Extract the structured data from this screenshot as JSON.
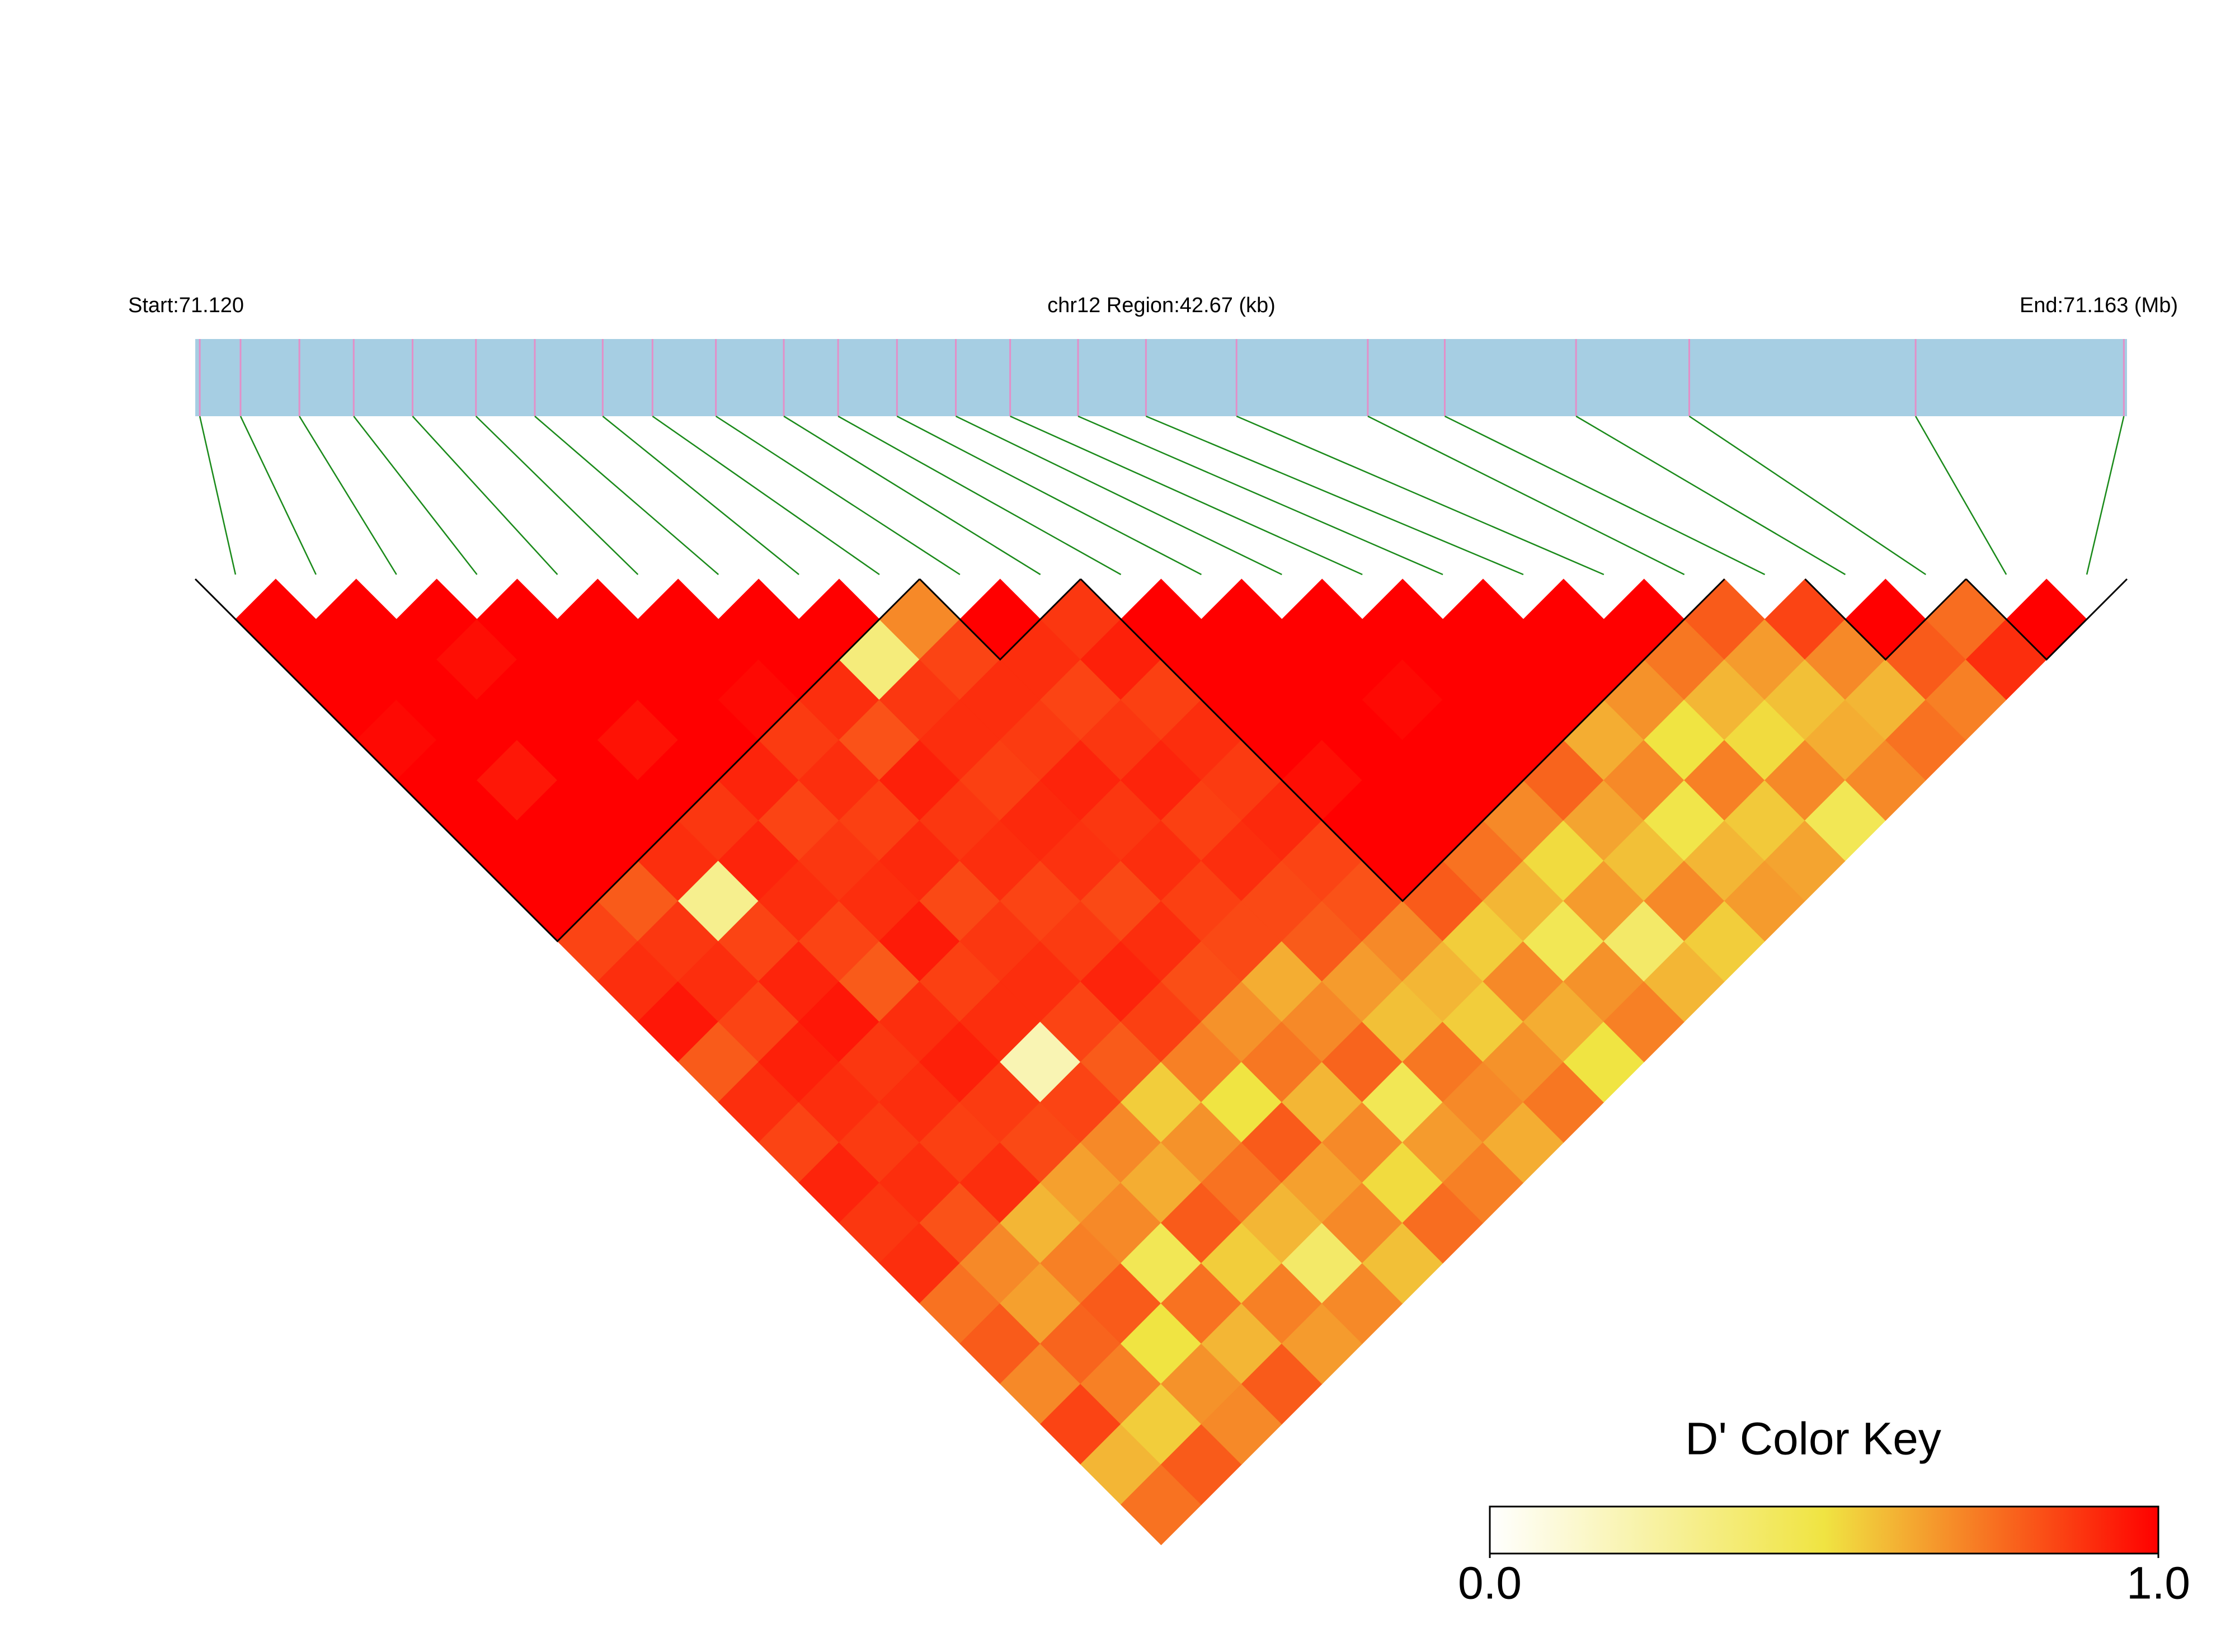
{
  "chart_data": {
    "type": "ld_heatmap",
    "start_label": "Start:71.120",
    "title": "chr12 Region:42.67 (kb)",
    "end_label": "End:71.163 (Mb)",
    "key_title": "D' Color Key",
    "xlim": [
      71.12,
      71.16267
    ],
    "positions": [
      71.1201,
      71.121,
      71.1223,
      71.1235,
      71.1248,
      71.1262,
      71.1275,
      71.129,
      71.1301,
      71.1315,
      71.133,
      71.1342,
      71.1355,
      71.1368,
      71.138,
      71.1395,
      71.141,
      71.143,
      71.1459,
      71.1476,
      71.1505,
      71.153,
      71.158,
      71.1626
    ],
    "ld": [
      [
        1,
        1,
        1,
        0.98,
        1,
        1,
        1,
        1,
        0.85,
        0.9,
        0.95,
        0.8,
        0.9,
        0.85,
        0.92,
        0.88,
        0.9,
        0.75,
        0.8,
        0.7,
        0.85,
        0.6,
        0.75
      ],
      [
        1,
        1,
        1,
        1,
        0.95,
        1,
        1,
        0.8,
        0.88,
        0.9,
        0.85,
        0.93,
        0.9,
        0.87,
        0.9,
        0.82,
        0.7,
        0.65,
        0.78,
        0.72,
        0.55,
        0.8
      ],
      [
        1,
        0.97,
        1,
        1,
        1,
        1,
        0.9,
        0.3,
        0.85,
        0.92,
        0.95,
        0.88,
        0.9,
        0.86,
        0.9,
        0.6,
        0.72,
        0.8,
        0.5,
        0.68,
        0.7
      ],
      [
        1,
        1,
        1,
        0.96,
        1,
        0.88,
        0.92,
        0.9,
        0.85,
        0.8,
        0.9,
        0.93,
        0.87,
        0.84,
        0.65,
        0.7,
        0.45,
        0.75,
        0.6,
        0.8
      ],
      [
        1,
        1,
        1,
        1,
        0.92,
        0.85,
        0.88,
        0.9,
        0.94,
        0.86,
        0.9,
        0.2,
        0.85,
        0.7,
        0.62,
        0.8,
        0.55,
        0.72,
        0.66
      ],
      [
        1,
        1,
        0.98,
        0.87,
        0.9,
        0.86,
        0.91,
        0.84,
        0.88,
        0.9,
        0.85,
        0.8,
        0.55,
        0.68,
        0.75,
        0.6,
        0.4,
        0.7
      ],
      [
        1,
        1,
        0.9,
        0.82,
        0.93,
        0.88,
        0.9,
        0.85,
        0.87,
        0.92,
        0.86,
        0.72,
        0.5,
        0.8,
        0.65,
        0.7,
        0.58
      ],
      [
        1,
        0.35,
        0.88,
        0.9,
        0.86,
        0.91,
        0.89,
        0.84,
        0.9,
        0.83,
        0.68,
        0.74,
        0.6,
        0.7,
        0.52,
        0.76
      ],
      [
        0.7,
        0.85,
        0.9,
        0.87,
        0.92,
        0.88,
        0.9,
        0.86,
        0.84,
        0.62,
        0.7,
        0.78,
        0.45,
        0.66,
        0.72
      ],
      [
        1,
        0.9,
        0.85,
        0.88,
        0.92,
        0.86,
        0.9,
        0.84,
        0.8,
        0.66,
        0.58,
        0.74,
        0.7,
        0.62
      ],
      [
        0.88,
        0.93,
        0.86,
        0.9,
        0.87,
        0.91,
        0.85,
        0.82,
        0.7,
        0.6,
        0.55,
        0.68,
        0.74
      ],
      [
        1,
        1,
        1,
        1,
        0.97,
        1,
        1,
        0.8,
        0.55,
        0.7,
        0.62,
        0.5
      ],
      [
        1,
        1,
        1,
        1,
        1,
        1,
        0.75,
        0.6,
        0.45,
        0.68,
        0.72
      ],
      [
        1,
        1,
        0.98,
        1,
        1,
        0.7,
        0.52,
        0.66,
        0.4,
        0.6
      ],
      [
        1,
        1,
        1,
        1,
        0.78,
        0.64,
        0.58,
        0.7,
        0.55
      ],
      [
        1,
        1,
        1,
        0.62,
        0.7,
        0.48,
        0.6,
        0.66
      ],
      [
        1,
        1,
        0.68,
        0.5,
        0.72,
        0.56,
        0.64
      ],
      [
        1,
        0.74,
        0.6,
        0.52,
        0.7,
        0.45
      ],
      [
        0.8,
        0.66,
        0.58,
        0.62,
        0.7
      ],
      [
        0.85,
        0.7,
        0.6,
        0.75
      ],
      [
        1,
        0.8,
        0.72
      ],
      [
        0.76,
        0.9
      ],
      [
        1
      ]
    ],
    "blocks": [
      [
        0,
        8
      ],
      [
        9,
        10
      ],
      [
        11,
        18
      ],
      [
        20,
        21
      ],
      [
        22,
        23
      ]
    ],
    "colors": [
      "#ffffff",
      "#f0e442",
      "#ff0000"
    ],
    "bar_color": "#a6cee3",
    "snp_color": "#e38fc8",
    "link_color": "#1a8a1a",
    "key_lim": [
      0,
      1
    ],
    "key_ticks": [
      {
        "value": 0,
        "label": "0.0"
      },
      {
        "value": 1,
        "label": "1.0"
      }
    ]
  }
}
